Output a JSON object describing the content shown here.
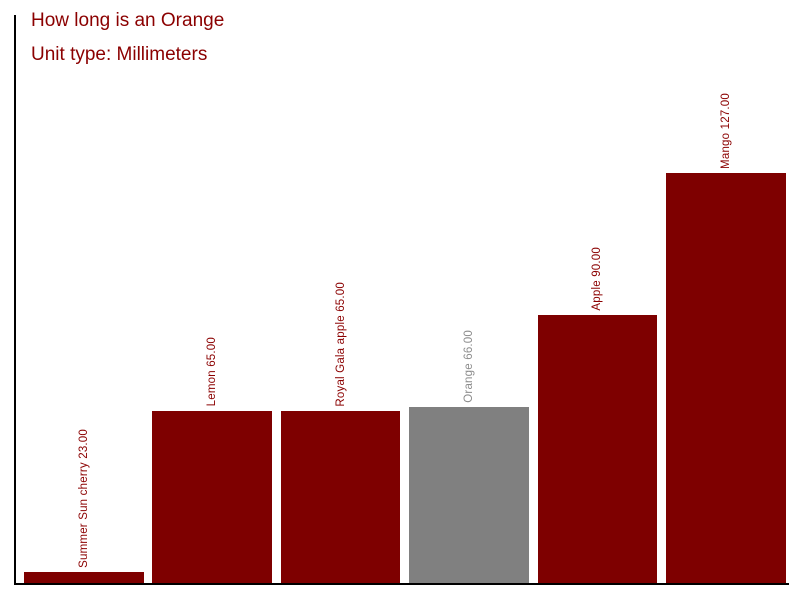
{
  "title": "How long is an Orange",
  "subtitle": "Unit type: Millimeters",
  "title_color": "#8B0000",
  "chart_data": {
    "type": "bar",
    "title": "How long is an Orange",
    "subtitle": "Unit type: Millimeters",
    "unit": "Millimeters",
    "categories": [
      "Summer Sun cherry",
      "Lemon",
      "Royal Gala apple",
      "Orange",
      "Apple",
      "Mango"
    ],
    "values": [
      23,
      65,
      65,
      66,
      90,
      127
    ],
    "bar_labels": [
      "Summer Sun cherry 23.00",
      "Lemon 65.00",
      "Royal Gala apple 65.00",
      "Orange 66.00",
      "Apple 90.00",
      "Mango 127.00"
    ],
    "bar_colors": [
      "#7E0000",
      "#7E0000",
      "#7E0000",
      "#808080",
      "#7E0000",
      "#7E0000"
    ],
    "label_colors": [
      "#8B0000",
      "#8B0000",
      "#8B0000",
      "#8C8C8C",
      "#8B0000",
      "#8B0000"
    ],
    "highlighted_category": "Orange",
    "xlabel": "",
    "ylabel": "",
    "grid": false,
    "legend": false,
    "axis_color": "#000000",
    "background_color": "#FFFFFF"
  }
}
